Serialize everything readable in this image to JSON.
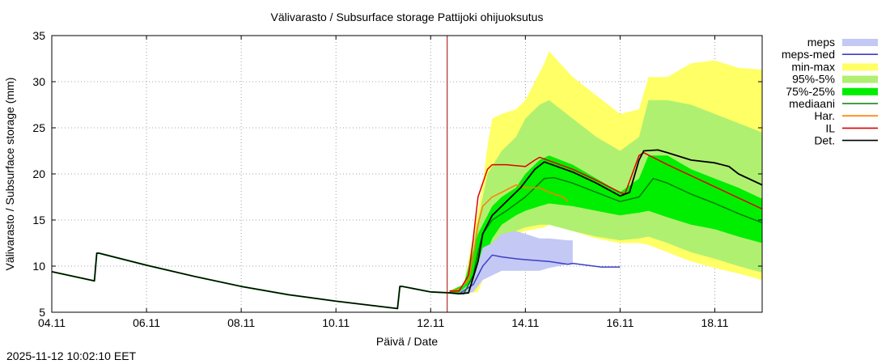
{
  "chart_data": {
    "type": "line",
    "title": "Välivarasto / Subsurface storage  Pattijoki ohijuoksutus",
    "xlabel": "Päivä / Date",
    "ylabel": "Välivarasto / Subsurface storage (mm)",
    "xlim": [
      0,
      15
    ],
    "ylim": [
      5,
      35
    ],
    "x_unit": "days since 04.11 00:00",
    "forecast_start": 8.35,
    "grid": true,
    "xticks": [
      {
        "x": 0,
        "label": "04.11"
      },
      {
        "x": 2,
        "label": "06.11"
      },
      {
        "x": 4,
        "label": "08.11"
      },
      {
        "x": 6,
        "label": "10.11"
      },
      {
        "x": 8,
        "label": "12.11"
      },
      {
        "x": 10,
        "label": "14.11"
      },
      {
        "x": 12,
        "label": "16.11"
      },
      {
        "x": 14,
        "label": "18.11"
      }
    ],
    "yticks": [
      {
        "y": 5,
        "label": "5"
      },
      {
        "y": 10,
        "label": "10"
      },
      {
        "y": 15,
        "label": "15"
      },
      {
        "y": 20,
        "label": "20"
      },
      {
        "y": 25,
        "label": "25"
      },
      {
        "y": 30,
        "label": "30"
      },
      {
        "y": 35,
        "label": "35"
      }
    ],
    "legend_position": "right",
    "legend": [
      {
        "key": "meps",
        "label": "meps",
        "kind": "band",
        "color": "#c4c8f4"
      },
      {
        "key": "meps_med",
        "label": "meps-med",
        "kind": "line",
        "color": "#3b3fc8"
      },
      {
        "key": "minmax",
        "label": "min-max",
        "kind": "band",
        "color": "#ffff66"
      },
      {
        "key": "p95_5",
        "label": "95%-5%",
        "kind": "band",
        "color": "#b0f070"
      },
      {
        "key": "p75_25",
        "label": "75%-25%",
        "kind": "band",
        "color": "#00ee00"
      },
      {
        "key": "median",
        "label": "mediaani",
        "kind": "line",
        "color": "#0a7a0a"
      },
      {
        "key": "har",
        "label": "Har.",
        "kind": "line",
        "color": "#ff7f00"
      },
      {
        "key": "il",
        "label": "IL",
        "kind": "line",
        "color": "#e00000"
      },
      {
        "key": "det",
        "label": "Det.",
        "kind": "line",
        "color": "#000000"
      }
    ],
    "history": {
      "x": [
        0,
        0.9,
        0.95,
        1.0,
        2.0,
        3.0,
        4.0,
        5.0,
        6.0,
        7.3,
        7.35,
        7.4,
        8.0,
        8.4
      ],
      "y": [
        9.4,
        8.4,
        11.4,
        11.4,
        10.1,
        8.9,
        7.8,
        6.9,
        6.2,
        5.4,
        7.8,
        7.8,
        7.2,
        7.1
      ]
    },
    "series": [
      {
        "key": "minmax",
        "type": "band",
        "x": [
          8.4,
          8.7,
          9.0,
          9.1,
          9.2,
          9.3,
          9.5,
          9.8,
          10.0,
          10.2,
          10.4,
          10.5,
          11.0,
          11.5,
          12.0,
          12.4,
          12.6,
          13.0,
          13.5,
          14.0,
          14.5,
          15.0
        ],
        "low": [
          7.1,
          7.0,
          7.2,
          8.5,
          10.0,
          11.5,
          13.0,
          13.5,
          13.8,
          14.0,
          14.2,
          14.5,
          13.8,
          13.0,
          12.5,
          12.5,
          12.3,
          11.5,
          10.5,
          9.8,
          9.2,
          8.5
        ],
        "high": [
          7.3,
          8.0,
          16.0,
          19.0,
          23.0,
          26.0,
          26.5,
          27.0,
          28.0,
          30.0,
          32.0,
          33.3,
          30.5,
          28.5,
          26.5,
          27.0,
          30.5,
          30.5,
          32.0,
          32.3,
          31.5,
          31.3
        ]
      },
      {
        "key": "p95_5",
        "type": "band",
        "x": [
          8.4,
          8.7,
          9.0,
          9.2,
          9.5,
          9.8,
          10.0,
          10.3,
          10.5,
          11.0,
          11.5,
          12.0,
          12.4,
          12.6,
          13.0,
          13.5,
          14.0,
          14.5,
          15.0
        ],
        "low": [
          7.1,
          7.0,
          8.0,
          10.5,
          13.0,
          13.8,
          14.2,
          14.5,
          14.5,
          13.8,
          13.2,
          12.8,
          13.0,
          13.2,
          12.5,
          11.5,
          10.8,
          10.0,
          9.3
        ],
        "high": [
          7.3,
          8.0,
          15.0,
          20.0,
          22.5,
          24.0,
          26.0,
          27.5,
          28.0,
          26.0,
          24.0,
          22.5,
          24.0,
          28.0,
          28.0,
          27.5,
          26.5,
          25.5,
          24.5
        ]
      },
      {
        "key": "p75_25",
        "type": "band",
        "x": [
          8.4,
          8.7,
          9.0,
          9.3,
          9.5,
          9.8,
          10.0,
          10.3,
          10.5,
          11.0,
          11.5,
          12.0,
          12.4,
          12.6,
          13.0,
          13.5,
          14.0,
          14.5,
          15.0
        ],
        "low": [
          7.1,
          7.0,
          9.0,
          13.0,
          14.5,
          15.5,
          16.0,
          16.5,
          16.8,
          16.5,
          16.0,
          15.5,
          15.8,
          16.0,
          15.3,
          14.5,
          14.0,
          13.2,
          12.5
        ],
        "high": [
          7.3,
          8.0,
          13.5,
          16.5,
          17.5,
          18.5,
          20.0,
          21.5,
          22.0,
          21.0,
          19.5,
          18.0,
          19.5,
          22.0,
          22.0,
          20.5,
          19.5,
          18.5,
          17.3
        ]
      },
      {
        "key": "meps",
        "type": "band",
        "x": [
          8.6,
          8.9,
          9.1,
          9.3,
          9.5,
          9.8,
          10.0,
          10.3,
          10.5,
          10.9,
          11.0
        ],
        "low": [
          6.9,
          7.2,
          8.5,
          9.0,
          9.5,
          9.5,
          9.5,
          9.5,
          9.8,
          10.2,
          10.2
        ],
        "high": [
          7.1,
          8.5,
          12.0,
          12.5,
          13.5,
          13.8,
          13.5,
          13.0,
          13.0,
          12.8,
          12.8
        ]
      },
      {
        "key": "meps_med",
        "type": "line",
        "x": [
          8.6,
          8.9,
          9.1,
          9.3,
          9.5,
          9.8,
          10.0,
          10.5,
          10.9,
          11.0,
          11.3,
          11.6,
          11.8,
          12.0
        ],
        "y": [
          7.0,
          8.0,
          10.0,
          11.2,
          11.0,
          10.8,
          10.7,
          10.5,
          10.2,
          10.3,
          10.1,
          9.9,
          9.9,
          9.9
        ]
      },
      {
        "key": "median",
        "type": "line",
        "x": [
          8.4,
          8.7,
          8.9,
          9.0,
          9.1,
          9.3,
          9.6,
          10.0,
          10.4,
          10.6,
          11.0,
          11.5,
          12.0,
          12.4,
          12.7,
          13.0,
          13.5,
          14.0,
          14.5,
          15.0
        ],
        "y": [
          7.1,
          7.0,
          9.0,
          11.5,
          13.5,
          15.0,
          16.0,
          17.5,
          19.5,
          19.6,
          19.0,
          18.0,
          17.0,
          17.5,
          19.5,
          19.0,
          17.8,
          16.8,
          15.7,
          14.7
        ]
      },
      {
        "key": "har",
        "type": "line",
        "x": [
          8.4,
          8.6,
          8.8,
          8.9,
          9.0,
          9.1,
          9.3,
          9.5,
          9.8,
          10.0,
          10.3,
          10.5,
          10.8,
          10.9
        ],
        "y": [
          7.3,
          7.5,
          8.5,
          11.0,
          14.5,
          16.5,
          17.5,
          18.0,
          18.8,
          18.5,
          18.5,
          18.0,
          17.5,
          17.0
        ]
      },
      {
        "key": "il",
        "type": "line",
        "x": [
          8.4,
          8.6,
          8.8,
          8.9,
          9.0,
          9.1,
          9.2,
          9.3,
          9.6,
          10.0,
          10.2,
          10.3,
          11.0,
          11.5,
          12.0,
          12.1,
          12.4,
          12.5,
          13.0,
          13.5,
          14.0,
          14.5,
          15.0
        ],
        "y": [
          7.3,
          7.3,
          9.0,
          13.0,
          17.5,
          19.0,
          20.5,
          21.0,
          21.0,
          20.8,
          21.5,
          21.8,
          20.5,
          19.3,
          18.0,
          17.8,
          22.0,
          22.3,
          21.0,
          19.8,
          18.6,
          17.4,
          16.2
        ]
      },
      {
        "key": "det",
        "type": "line",
        "x": [
          8.4,
          8.6,
          8.8,
          9.0,
          9.1,
          9.3,
          9.6,
          9.9,
          10.2,
          10.4,
          11.0,
          11.5,
          12.0,
          12.2,
          12.4,
          12.5,
          12.8,
          13.0,
          13.5,
          14.0,
          14.3,
          14.5,
          15.0
        ],
        "y": [
          7.1,
          7.0,
          7.1,
          10.5,
          13.5,
          15.5,
          17.0,
          18.5,
          20.5,
          21.3,
          20.2,
          19.0,
          17.6,
          18.0,
          21.5,
          22.5,
          22.6,
          22.3,
          21.5,
          21.2,
          20.8,
          20.0,
          18.8
        ]
      }
    ]
  },
  "footer": {
    "timestamp": "2025-11-12 10:02:10 EET"
  }
}
